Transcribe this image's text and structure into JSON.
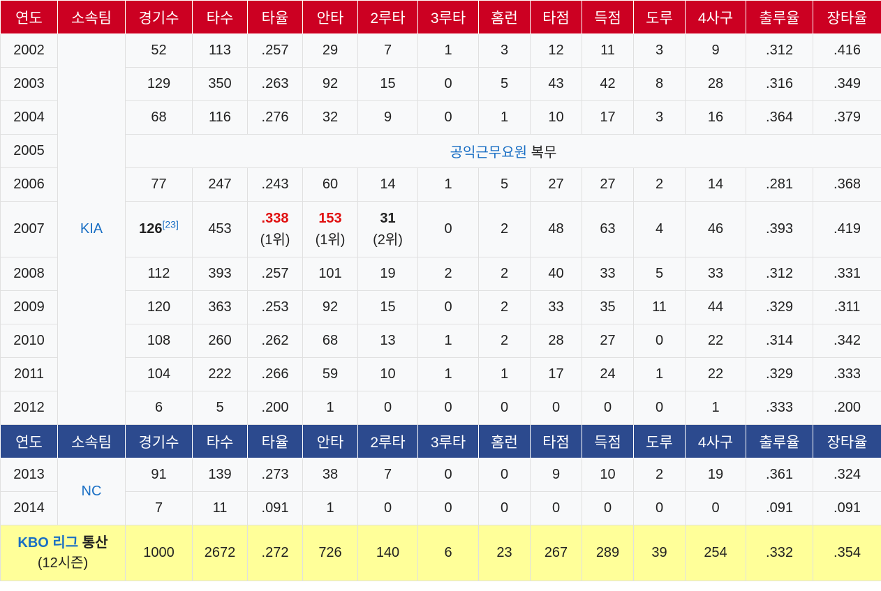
{
  "headers": [
    "연도",
    "소속팀",
    "경기수",
    "타수",
    "타율",
    "안타",
    "2루타",
    "3루타",
    "홈런",
    "타점",
    "득점",
    "도루",
    "4사구",
    "출루율",
    "장타율"
  ],
  "kia": {
    "team": "KIA",
    "rows": [
      {
        "year": "2002",
        "g": "52",
        "ab": "113",
        "avg": ".257",
        "h": "29",
        "d": "7",
        "t": "1",
        "hr": "3",
        "rbi": "12",
        "r": "11",
        "sb": "3",
        "bb": "9",
        "obp": ".312",
        "slg": ".416"
      },
      {
        "year": "2003",
        "g": "129",
        "ab": "350",
        "avg": ".263",
        "h": "92",
        "d": "15",
        "t": "0",
        "hr": "5",
        "rbi": "43",
        "r": "42",
        "sb": "8",
        "bb": "28",
        "obp": ".316",
        "slg": ".349"
      },
      {
        "year": "2004",
        "g": "68",
        "ab": "116",
        "avg": ".276",
        "h": "32",
        "d": "9",
        "t": "0",
        "hr": "1",
        "rbi": "10",
        "r": "17",
        "sb": "3",
        "bb": "16",
        "obp": ".364",
        "slg": ".379"
      }
    ],
    "service": {
      "year": "2005",
      "link": "공익근무요원",
      "text": " 복무"
    },
    "row2006": {
      "year": "2006",
      "g": "77",
      "ab": "247",
      "avg": ".243",
      "h": "60",
      "d": "14",
      "t": "1",
      "hr": "5",
      "rbi": "27",
      "r": "27",
      "sb": "2",
      "bb": "14",
      "obp": ".281",
      "slg": ".368"
    },
    "row2007": {
      "year": "2007",
      "g": "126",
      "g_ref": "[23]",
      "ab": "453",
      "avg": ".338",
      "avg_rank": "(1위)",
      "h": "153",
      "h_rank": "(1위)",
      "d": "31",
      "d_rank": "(2위)",
      "t": "0",
      "hr": "2",
      "rbi": "48",
      "r": "63",
      "sb": "4",
      "bb": "46",
      "obp": ".393",
      "slg": ".419"
    },
    "rows_after": [
      {
        "year": "2008",
        "g": "112",
        "ab": "393",
        "avg": ".257",
        "h": "101",
        "d": "19",
        "t": "2",
        "hr": "2",
        "rbi": "40",
        "r": "33",
        "sb": "5",
        "bb": "33",
        "obp": ".312",
        "slg": ".331"
      },
      {
        "year": "2009",
        "g": "120",
        "ab": "363",
        "avg": ".253",
        "h": "92",
        "d": "15",
        "t": "0",
        "hr": "2",
        "rbi": "33",
        "r": "35",
        "sb": "11",
        "bb": "44",
        "obp": ".329",
        "slg": ".311"
      },
      {
        "year": "2010",
        "g": "108",
        "ab": "260",
        "avg": ".262",
        "h": "68",
        "d": "13",
        "t": "1",
        "hr": "2",
        "rbi": "28",
        "r": "27",
        "sb": "0",
        "bb": "22",
        "obp": ".314",
        "slg": ".342"
      },
      {
        "year": "2011",
        "g": "104",
        "ab": "222",
        "avg": ".266",
        "h": "59",
        "d": "10",
        "t": "1",
        "hr": "1",
        "rbi": "17",
        "r": "24",
        "sb": "1",
        "bb": "22",
        "obp": ".329",
        "slg": ".333"
      },
      {
        "year": "2012",
        "g": "6",
        "ab": "5",
        "avg": ".200",
        "h": "1",
        "d": "0",
        "t": "0",
        "hr": "0",
        "rbi": "0",
        "r": "0",
        "sb": "0",
        "bb": "1",
        "obp": ".333",
        "slg": ".200"
      }
    ]
  },
  "nc": {
    "team": "NC",
    "rows": [
      {
        "year": "2013",
        "g": "91",
        "ab": "139",
        "avg": ".273",
        "h": "38",
        "d": "7",
        "t": "0",
        "hr": "0",
        "rbi": "9",
        "r": "10",
        "sb": "2",
        "bb": "19",
        "obp": ".361",
        "slg": ".324"
      },
      {
        "year": "2014",
        "g": "7",
        "ab": "11",
        "avg": ".091",
        "h": "1",
        "d": "0",
        "t": "0",
        "hr": "0",
        "rbi": "0",
        "r": "0",
        "sb": "0",
        "bb": "0",
        "obp": ".091",
        "slg": ".091"
      }
    ]
  },
  "total": {
    "label_link": "KBO 리그",
    "label_text": " 통산",
    "seasons": "(12시즌)",
    "g": "1000",
    "ab": "2672",
    "avg": ".272",
    "h": "726",
    "d": "140",
    "t": "6",
    "hr": "23",
    "rbi": "267",
    "r": "289",
    "sb": "39",
    "bb": "254",
    "obp": ".332",
    "slg": ".354"
  },
  "colors": {
    "header_red": "#cc0022",
    "header_blue": "#2c4a8e",
    "total_bg": "#ffff99",
    "link": "#1a6fc4",
    "highlight": "#e01010"
  }
}
